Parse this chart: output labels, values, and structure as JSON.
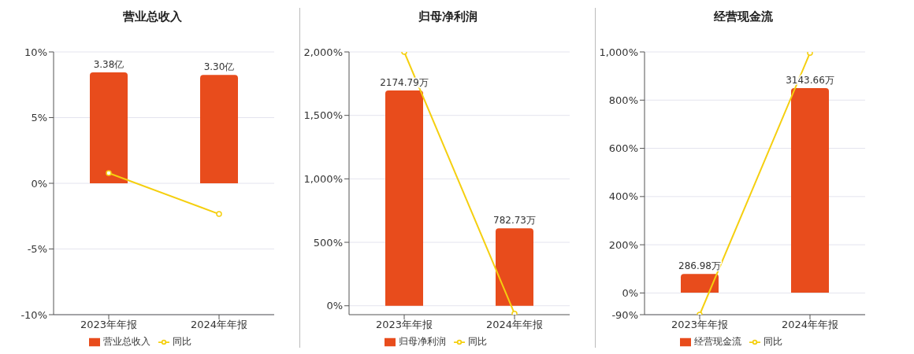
{
  "chart_data": [
    {
      "type": "bar",
      "title": "营业总收入",
      "categories": [
        "2023年年报",
        "2024年年报"
      ],
      "series": [
        {
          "name": "营业总收入",
          "axis": "y2",
          "color": "#e84c1c",
          "values": [
            3.38,
            3.3
          ],
          "value_labels": [
            "3.38亿",
            "3.30亿"
          ]
        },
        {
          "name": "同比",
          "type": "line",
          "color": "#f5cf0f",
          "values": [
            0.78,
            -2.34
          ]
        }
      ],
      "ylim": [
        -10,
        10
      ],
      "yticks": [
        {
          "value": -10,
          "label": "-10%"
        },
        {
          "value": -5,
          "label": "-5%"
        },
        {
          "value": 0,
          "label": "0%"
        },
        {
          "value": 5,
          "label": "5%"
        },
        {
          "value": 10,
          "label": "10%"
        }
      ],
      "y2lim": [
        -4,
        4
      ],
      "grid": "y",
      "legend": "bottom",
      "marker": "circle",
      "line_style": "solid"
    },
    {
      "type": "bar",
      "title": "归母净利润",
      "categories": [
        "2023年年报",
        "2024年年报"
      ],
      "series": [
        {
          "name": "归母净利润",
          "axis": "y2",
          "color": "#e84c1c",
          "values": [
            2174.79,
            782.73
          ],
          "value_labels": [
            "2174.79万",
            "782.73万"
          ]
        },
        {
          "name": "同比",
          "type": "line",
          "color": "#f5cf0f",
          "values": [
            2000,
            -62
          ]
        }
      ],
      "ylim": [
        -70,
        2000
      ],
      "yticks": [
        {
          "value": 0,
          "label": "0%"
        },
        {
          "value": 500,
          "label": "500%"
        },
        {
          "value": 1000,
          "label": "1,000%"
        },
        {
          "value": 1500,
          "label": "1,500%"
        },
        {
          "value": 2000,
          "label": "2,000%"
        }
      ],
      "y2lim": [
        -90,
        2564
      ],
      "grid": "y",
      "legend": "bottom",
      "marker": "circle",
      "line_style": "solid"
    },
    {
      "type": "bar",
      "title": "经营现金流",
      "categories": [
        "2023年年报",
        "2024年年报"
      ],
      "series": [
        {
          "name": "经营现金流",
          "axis": "y2",
          "color": "#e84c1c",
          "values": [
            286.98,
            3143.66
          ],
          "value_labels": [
            "286.98万",
            "3143.66万"
          ]
        },
        {
          "name": "同比",
          "type": "line",
          "color": "#f5cf0f",
          "values": [
            -90,
            996
          ]
        }
      ],
      "ylim": [
        -90,
        1000
      ],
      "yticks": [
        {
          "value": -90,
          "label": "-90%"
        },
        {
          "value": 0,
          "label": "0%"
        },
        {
          "value": 200,
          "label": "200%"
        },
        {
          "value": 400,
          "label": "400%"
        },
        {
          "value": 600,
          "label": "600%"
        },
        {
          "value": 800,
          "label": "800%"
        },
        {
          "value": 1000,
          "label": "1,000%"
        }
      ],
      "y2lim": [
        -337,
        3698
      ],
      "grid": "y",
      "legend": "bottom",
      "marker": "circle",
      "line_style": "solid"
    }
  ]
}
